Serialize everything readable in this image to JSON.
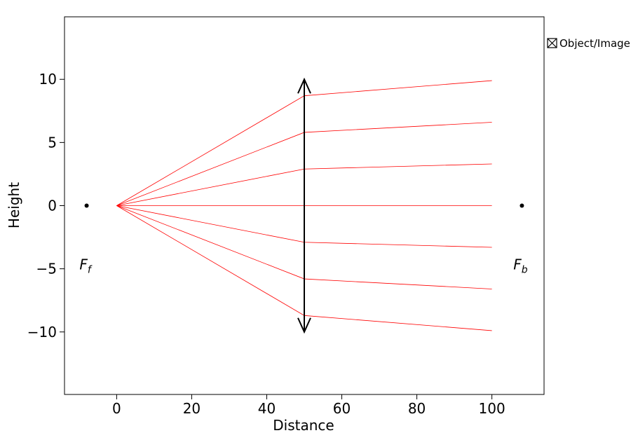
{
  "chart_data": {
    "type": "line",
    "xlabel": "Distance",
    "ylabel": "Height",
    "xlim": [
      -13.9,
      113.9
    ],
    "ylim": [
      -14.95,
      14.95
    ],
    "xticks": [
      0,
      20,
      40,
      60,
      80,
      100
    ],
    "yticks": [
      -10,
      -5,
      0,
      5,
      10
    ],
    "xtick_labels": [
      "0",
      "20",
      "40",
      "60",
      "80",
      "100"
    ],
    "ytick_labels": [
      "−10",
      "−5",
      "0",
      "5",
      "10"
    ],
    "grid": false,
    "legend": {
      "entries": [
        "Object/Image"
      ],
      "placement": "outside-right-top"
    },
    "lens": {
      "x": 50,
      "y_min": -10,
      "y_max": 10,
      "type": "converging",
      "color": "#000000"
    },
    "focal_points": [
      {
        "label": "F",
        "subscript": "f",
        "x": -8,
        "y": 0
      },
      {
        "label": "F",
        "subscript": "b",
        "x": 108,
        "y": 0
      }
    ],
    "ray_color": "#ff0000",
    "rays": [
      {
        "x": [
          0,
          50,
          100
        ],
        "y": [
          0,
          8.7,
          9.9
        ]
      },
      {
        "x": [
          0,
          50,
          100
        ],
        "y": [
          0,
          5.8,
          6.6
        ]
      },
      {
        "x": [
          0,
          50,
          100
        ],
        "y": [
          0,
          2.9,
          3.3
        ]
      },
      {
        "x": [
          0,
          50,
          100
        ],
        "y": [
          0,
          0,
          0
        ]
      },
      {
        "x": [
          0,
          50,
          100
        ],
        "y": [
          0,
          -2.9,
          -3.3
        ]
      },
      {
        "x": [
          0,
          50,
          100
        ],
        "y": [
          0,
          -5.8,
          -6.6
        ]
      },
      {
        "x": [
          0,
          50,
          100
        ],
        "y": [
          0,
          -8.7,
          -9.9
        ]
      }
    ]
  }
}
